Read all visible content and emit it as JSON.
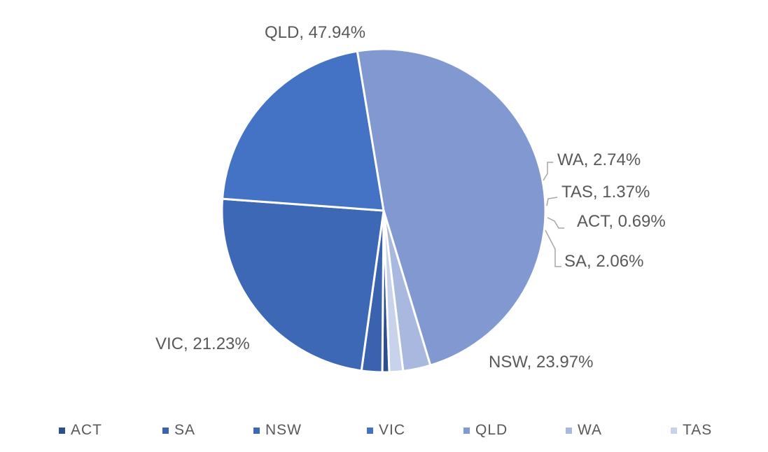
{
  "chart_data": {
    "type": "pie",
    "title": "",
    "categories": [
      "ACT",
      "SA",
      "NSW",
      "VIC",
      "QLD",
      "WA",
      "TAS"
    ],
    "values": [
      0.69,
      2.06,
      23.97,
      21.23,
      47.94,
      2.74,
      1.37
    ],
    "unit": "%",
    "colors": [
      "#2E4F8E",
      "#3A62AE",
      "#3C68B6",
      "#4472C4",
      "#8198D0",
      "#A9B8DF",
      "#C8D2EB"
    ],
    "data_labels": [
      {
        "category": "ACT",
        "text": "ACT, 0.69%"
      },
      {
        "category": "SA",
        "text": "SA, 2.06%"
      },
      {
        "category": "NSW",
        "text": "NSW, 23.97%"
      },
      {
        "category": "VIC",
        "text": "VIC, 21.23%"
      },
      {
        "category": "QLD",
        "text": "QLD, 47.94%"
      },
      {
        "category": "WA",
        "text": "WA, 2.74%"
      },
      {
        "category": "TAS",
        "text": "TAS, 1.37%"
      }
    ],
    "legend": {
      "placement": "bottom",
      "entries": [
        "ACT",
        "SA",
        "NSW",
        "VIC",
        "QLD",
        "WA",
        "TAS"
      ]
    }
  }
}
